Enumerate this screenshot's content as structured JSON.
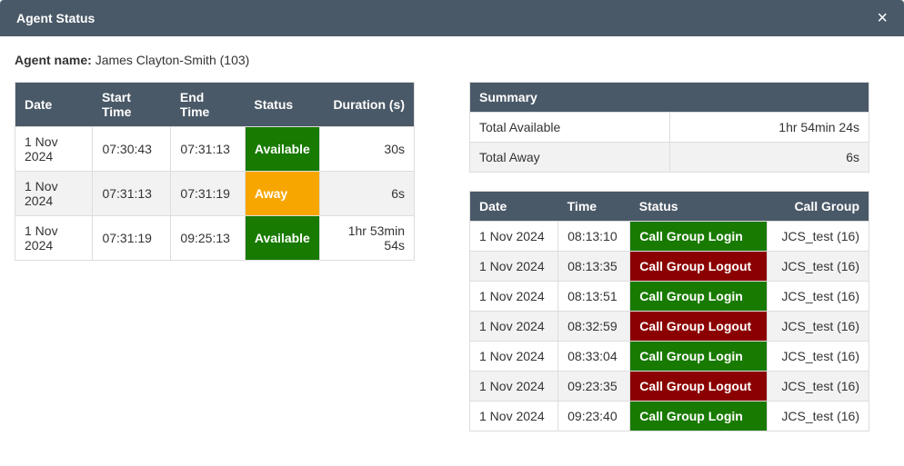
{
  "header": {
    "title": "Agent Status",
    "close_symbol": "×"
  },
  "agent": {
    "label": "Agent name:",
    "value": "James Clayton-Smith (103)"
  },
  "statusColors": {
    "Available": "status-available",
    "Away": "status-away",
    "Call Group Login": "status-login",
    "Call Group Logout": "status-logout"
  },
  "history": {
    "columns": [
      "Date",
      "Start Time",
      "End Time",
      "Status",
      "Duration (s)"
    ],
    "rows": [
      {
        "date": "1 Nov 2024",
        "start": "07:30:43",
        "end": "07:31:13",
        "status": "Available",
        "duration": "30s"
      },
      {
        "date": "1 Nov 2024",
        "start": "07:31:13",
        "end": "07:31:19",
        "status": "Away",
        "duration": "6s"
      },
      {
        "date": "1 Nov 2024",
        "start": "07:31:19",
        "end": "09:25:13",
        "status": "Available",
        "duration": "1hr 53min 54s"
      }
    ]
  },
  "summary": {
    "title": "Summary",
    "rows": [
      {
        "label": "Total Available",
        "value": "1hr 54min 24s"
      },
      {
        "label": "Total Away",
        "value": "6s"
      }
    ]
  },
  "events": {
    "columns": [
      "Date",
      "Time",
      "Status",
      "Call Group"
    ],
    "rows": [
      {
        "date": "1 Nov 2024",
        "time": "08:13:10",
        "status": "Call Group Login",
        "group": "JCS_test (16)"
      },
      {
        "date": "1 Nov 2024",
        "time": "08:13:35",
        "status": "Call Group Logout",
        "group": "JCS_test (16)"
      },
      {
        "date": "1 Nov 2024",
        "time": "08:13:51",
        "status": "Call Group Login",
        "group": "JCS_test (16)"
      },
      {
        "date": "1 Nov 2024",
        "time": "08:32:59",
        "status": "Call Group Logout",
        "group": "JCS_test (16)"
      },
      {
        "date": "1 Nov 2024",
        "time": "08:33:04",
        "status": "Call Group Login",
        "group": "JCS_test (16)"
      },
      {
        "date": "1 Nov 2024",
        "time": "09:23:35",
        "status": "Call Group Logout",
        "group": "JCS_test (16)"
      },
      {
        "date": "1 Nov 2024",
        "time": "09:23:40",
        "status": "Call Group Login",
        "group": "JCS_test (16)"
      }
    ]
  }
}
